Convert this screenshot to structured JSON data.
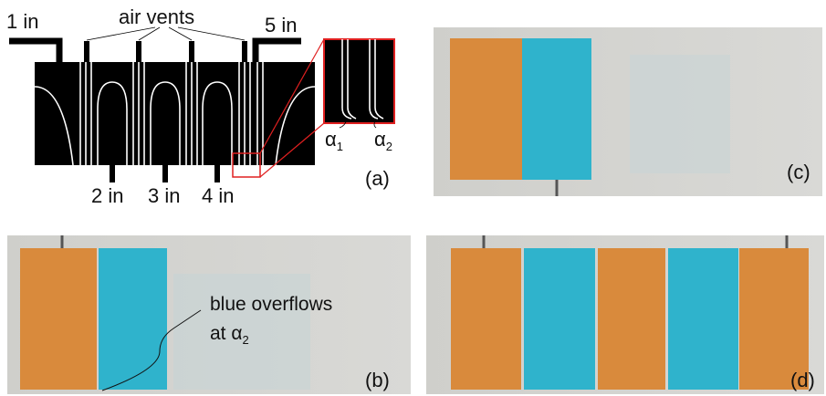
{
  "panel_a": {
    "inlet_labels": [
      "1 in",
      "5 in",
      "2 in",
      "3 in",
      "4 in"
    ],
    "vents_label": "air vents",
    "panel_label": "(a)",
    "angles": [
      {
        "symbol": "α",
        "subscript": "1"
      },
      {
        "symbol": "α",
        "subscript": "2"
      }
    ]
  },
  "panel_b": {
    "panel_label": "(b)",
    "annotation": {
      "line1": "blue overflows",
      "line2": "at α",
      "subscript": "2"
    }
  },
  "panel_c": {
    "panel_label": "(c)"
  },
  "panel_d": {
    "panel_label": "(d)"
  }
}
